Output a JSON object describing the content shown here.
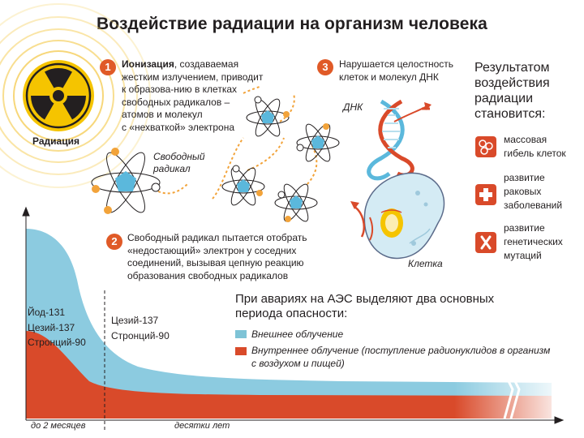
{
  "title": "Воздействие радиации на организм человека",
  "radiation_label": "Радиация",
  "step1": {
    "num": "1",
    "bold": "Ионизация",
    "lines": [
      ", создаваемая",
      "жестким излучением, приводит",
      "к образова-нию в клетках",
      "свободных радикалов –",
      "атомов и молекул",
      "с «нехваткой» электрона"
    ]
  },
  "free_radical_label": [
    "Свободный",
    "радикал"
  ],
  "step2": {
    "num": "2",
    "lines": [
      "Свободный радикал пытается отобрать",
      "«недостающий» электрон у соседних",
      "соединений, вызывая цепную реакцию",
      "образования свободных радикалов"
    ]
  },
  "step3": {
    "num": "3",
    "lines": [
      "Нарушается целостность",
      "клеток и молекул ДНК"
    ]
  },
  "dna_label": "ДНК",
  "cell_label": "Клетка",
  "result": {
    "title": [
      "Результатом",
      "воздействия",
      "радиации",
      "становится:"
    ],
    "items": [
      {
        "icon": "cells-icon",
        "lines": [
          "массовая",
          "гибель клеток"
        ]
      },
      {
        "icon": "cross-icon",
        "lines": [
          "развитие",
          "раковых",
          "заболеваний"
        ]
      },
      {
        "icon": "chromosome-icon",
        "lines": [
          "развитие",
          "генетических",
          "мутаций"
        ]
      }
    ]
  },
  "periods": {
    "title": [
      "При авариях на АЭС выделяют два основных",
      "периода опасности:"
    ],
    "legend": [
      {
        "color": "#7ec3d6",
        "label": "Внешнее облучение"
      },
      {
        "color": "#d94a2a",
        "label": "Внутреннее облучение (поступление радионуклидов в организм",
        "label2": "с воздухом и пищей)"
      }
    ]
  },
  "isotopes_early": [
    "Йод-131",
    "Цезий-137",
    "Стронций-90"
  ],
  "isotopes_late": [
    "Цезий-137",
    "Стронций-90"
  ],
  "axis": {
    "left_label": "до 2 месяцев",
    "right_label": "десятки лет"
  },
  "colors": {
    "accent": "#e05a27",
    "external": "#7ec3d6",
    "internal": "#d94a2a",
    "radiation_yellow": "#f5c400",
    "atom_blue": "#5bb8dc"
  }
}
